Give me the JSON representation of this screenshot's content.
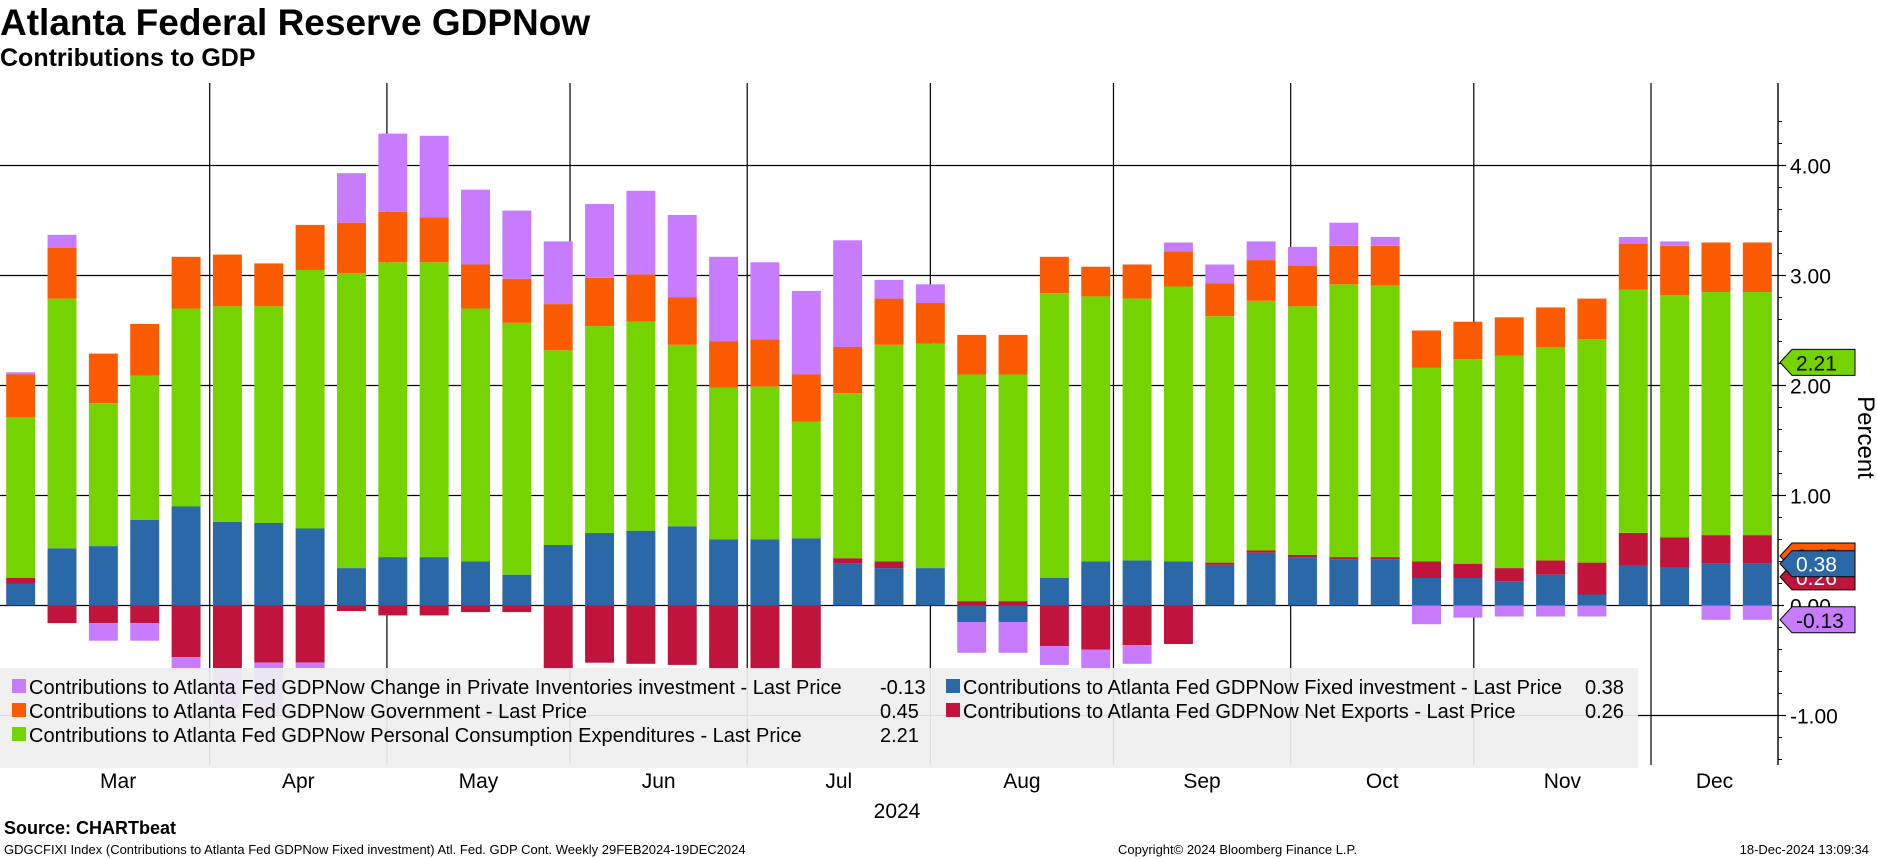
{
  "header": {
    "title": "Atlanta Federal Reserve GDPNow",
    "subtitle": "Contributions to GDP"
  },
  "footer": {
    "source": "Source: CHARTbeat",
    "ticker_info": "GDGCFIXI Index (Contributions to Atlanta Fed GDPNow Fixed investment) Atl. Fed. GDP Cont.  Weekly 29FEB2024-19DEC2024",
    "copyright": "Copyright© 2024 Bloomberg Finance L.P.",
    "timestamp": "18-Dec-2024 13:09:34"
  },
  "chart_data": {
    "type": "bar",
    "stacked": true,
    "ylabel": "Percent",
    "xlabel": "2024",
    "ylim": [
      -1.45,
      4.75
    ],
    "yticks": [
      "-1.00",
      "0.00",
      "1.00",
      "2.00",
      "3.00",
      "4.00"
    ],
    "month_labels": [
      "Mar",
      "Apr",
      "May",
      "Jun",
      "Jul",
      "Aug",
      "Sep",
      "Oct",
      "Nov",
      "Dec"
    ],
    "grid": true,
    "legend_position": "bottom",
    "x": [
      "2024-02-29",
      "2024-03-07",
      "2024-03-14",
      "2024-03-21",
      "2024-03-28",
      "2024-04-04",
      "2024-04-11",
      "2024-04-18",
      "2024-04-25",
      "2024-05-02",
      "2024-05-09",
      "2024-05-16",
      "2024-05-23",
      "2024-05-30",
      "2024-06-06",
      "2024-06-13",
      "2024-06-20",
      "2024-06-27",
      "2024-07-03",
      "2024-07-10",
      "2024-07-17",
      "2024-07-25",
      "2024-08-01",
      "2024-08-08",
      "2024-08-15",
      "2024-08-22",
      "2024-08-29",
      "2024-09-05",
      "2024-09-12",
      "2024-09-19",
      "2024-09-26",
      "2024-10-03",
      "2024-10-10",
      "2024-10-17",
      "2024-10-24",
      "2024-10-31",
      "2024-11-07",
      "2024-11-14",
      "2024-11-21",
      "2024-11-28",
      "2024-12-05",
      "2024-12-12",
      "2024-12-19"
    ],
    "series": [
      {
        "name": "Contributions to Atlanta Fed GDPNow Fixed investment - Last Price",
        "color": "#2a68a8",
        "last": "0.38",
        "values": [
          0.2,
          0.52,
          0.54,
          0.78,
          0.9,
          0.76,
          0.75,
          0.7,
          0.34,
          0.44,
          0.44,
          0.4,
          0.28,
          0.55,
          0.66,
          0.68,
          0.72,
          0.6,
          0.6,
          0.61,
          0.38,
          0.34,
          0.34,
          -0.15,
          -0.15,
          0.25,
          0.4,
          0.41,
          0.4,
          0.37,
          0.48,
          0.44,
          0.42,
          0.42,
          0.25,
          0.25,
          0.22,
          0.28,
          0.1,
          0.36,
          0.35,
          0.38,
          0.38
        ]
      },
      {
        "name": "Contributions to Atlanta Fed GDPNow Net Exports - Last Price",
        "color": "#c0143c",
        "last": "0.26",
        "values": [
          0.05,
          -0.16,
          -0.16,
          -0.16,
          -0.47,
          -0.57,
          -0.52,
          -0.52,
          -0.05,
          -0.09,
          -0.09,
          -0.06,
          -0.06,
          -0.58,
          -0.52,
          -0.53,
          -0.54,
          -0.58,
          -0.58,
          -0.58,
          0.05,
          0.06,
          0.0,
          0.04,
          0.04,
          -0.37,
          -0.4,
          -0.36,
          -0.35,
          0.02,
          0.02,
          0.02,
          0.02,
          0.02,
          0.15,
          0.13,
          0.12,
          0.13,
          0.29,
          0.3,
          0.27,
          0.26,
          0.26
        ]
      },
      {
        "name": "Contributions to Atlanta Fed GDPNow Personal Consumption Expenditures - Last Price",
        "color": "#75d400",
        "last": "2.21",
        "values": [
          1.46,
          2.27,
          1.3,
          1.31,
          1.8,
          1.96,
          1.97,
          2.35,
          2.68,
          2.68,
          2.68,
          2.3,
          2.29,
          1.77,
          1.88,
          1.9,
          1.65,
          1.38,
          1.39,
          1.06,
          1.5,
          1.97,
          2.04,
          2.06,
          2.06,
          2.59,
          2.41,
          2.38,
          2.5,
          2.24,
          2.27,
          2.26,
          2.48,
          2.47,
          1.76,
          1.86,
          1.93,
          1.94,
          2.03,
          2.21,
          2.2,
          2.21,
          2.21
        ]
      },
      {
        "name": "Contributions to Atlanta Fed GDPNow Government - Last Price",
        "color": "#fa5a00",
        "last": "0.45",
        "values": [
          0.39,
          0.46,
          0.45,
          0.47,
          0.47,
          0.47,
          0.39,
          0.41,
          0.46,
          0.46,
          0.41,
          0.4,
          0.4,
          0.42,
          0.44,
          0.43,
          0.43,
          0.42,
          0.43,
          0.43,
          0.42,
          0.42,
          0.37,
          0.36,
          0.36,
          0.33,
          0.27,
          0.31,
          0.32,
          0.3,
          0.37,
          0.37,
          0.35,
          0.36,
          0.34,
          0.34,
          0.35,
          0.36,
          0.37,
          0.42,
          0.45,
          0.45,
          0.45
        ]
      },
      {
        "name": "Contributions to Atlanta Fed GDPNow Change in Private Inventories investment - Last Price",
        "color": "#c77cff",
        "last": "-0.13",
        "values": [
          0.02,
          0.12,
          -0.16,
          -0.16,
          -0.12,
          -0.37,
          -0.47,
          -0.05,
          0.45,
          0.71,
          0.74,
          0.68,
          0.62,
          0.57,
          0.67,
          0.76,
          0.75,
          0.77,
          0.7,
          0.76,
          0.97,
          0.17,
          0.17,
          -0.28,
          -0.28,
          -0.17,
          -0.18,
          -0.17,
          0.08,
          0.17,
          0.17,
          0.17,
          0.21,
          0.08,
          -0.17,
          -0.11,
          -0.1,
          -0.1,
          -0.1,
          0.06,
          0.04,
          -0.13,
          -0.13
        ]
      }
    ],
    "callouts": [
      {
        "value": "0.45",
        "label": "0.45",
        "color": "#fa5a00",
        "text_color": "#000000"
      },
      {
        "value": "2.21",
        "label": "2.21",
        "color": "#75d400",
        "text_color": "#000000"
      },
      {
        "value": "0.26",
        "label": "0.26",
        "color": "#c0143c",
        "text_color": "#ffffff"
      },
      {
        "value": "0.38",
        "label": "0.38",
        "color": "#2a68a8",
        "text_color": "#ffffff"
      },
      {
        "value": "-0.13",
        "label": "-0.13",
        "color": "#c77cff",
        "text_color": "#000000"
      }
    ]
  }
}
